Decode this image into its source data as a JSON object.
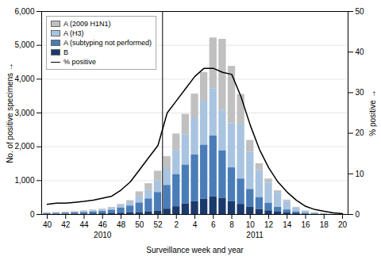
{
  "chart_data": {
    "type": "bar",
    "stacked": true,
    "categories": [
      "40",
      null,
      "42",
      null,
      "44",
      null,
      "46",
      null,
      "48",
      null,
      "50",
      null,
      "52",
      null,
      "2",
      null,
      "4",
      null,
      "6",
      null,
      "8",
      null,
      "10",
      null,
      "12",
      null,
      "14",
      null,
      "16",
      null,
      "18",
      null,
      "20"
    ],
    "series": [
      {
        "name": "A (2009 H1N1)",
        "color": "#c0c0c0",
        "values": [
          15,
          15,
          20,
          20,
          25,
          30,
          30,
          35,
          40,
          60,
          150,
          200,
          280,
          350,
          500,
          600,
          700,
          850,
          1500,
          2100,
          1700,
          900,
          350,
          200,
          120,
          70,
          40,
          20,
          10,
          5,
          3,
          1,
          1
        ]
      },
      {
        "name": "A (H3)",
        "color": "#a8c4e0",
        "values": [
          10,
          10,
          15,
          20,
          25,
          30,
          40,
          50,
          70,
          100,
          180,
          250,
          350,
          500,
          700,
          900,
          1100,
          1300,
          1400,
          1200,
          1300,
          1600,
          1100,
          800,
          600,
          420,
          250,
          120,
          60,
          30,
          12,
          5,
          2
        ]
      },
      {
        "name": "A (subtyping not performed)",
        "color": "#4a7db8",
        "values": [
          20,
          25,
          30,
          35,
          45,
          55,
          70,
          100,
          150,
          200,
          280,
          380,
          550,
          700,
          950,
          1150,
          1380,
          1600,
          1800,
          1400,
          1000,
          750,
          520,
          350,
          220,
          140,
          90,
          50,
          25,
          12,
          6,
          3,
          1
        ]
      },
      {
        "name": "B",
        "color": "#1a3a6b",
        "values": [
          8,
          8,
          10,
          12,
          15,
          18,
          20,
          25,
          40,
          50,
          60,
          80,
          100,
          160,
          230,
          310,
          380,
          450,
          520,
          480,
          380,
          300,
          220,
          150,
          110,
          70,
          45,
          25,
          12,
          6,
          3,
          1,
          1
        ]
      },
      {
        "name": "% positive",
        "type": "line",
        "axis": "y2",
        "color": "#000000",
        "values": [
          2.5,
          2.8,
          2.8,
          3.0,
          3.2,
          3.5,
          4.0,
          4.5,
          6.0,
          8.0,
          11.0,
          14.0,
          17.0,
          25.0,
          28.0,
          31.0,
          34.0,
          36.0,
          36.0,
          35.0,
          34.5,
          29.0,
          22.0,
          16.0,
          11.5,
          8.0,
          5.5,
          3.5,
          2.0,
          1.2,
          0.8,
          0.4,
          0.2
        ]
      }
    ],
    "xlabel": "Surveillance week and year",
    "ylabel": "No. of positive specimens",
    "y2label": "% positive",
    "ylim": [
      0,
      6000
    ],
    "yticks": [
      0,
      {
        "value": 1000,
        "label": "1,000"
      },
      {
        "value": 2000,
        "label": "2,000"
      },
      {
        "value": 3000,
        "label": "3,000"
      },
      {
        "value": 4000,
        "label": "4,000"
      },
      {
        "value": 5000,
        "label": "5,000"
      },
      {
        "value": 6000,
        "label": "6,000"
      }
    ],
    "y2lim": [
      0,
      50
    ],
    "y2ticks": [
      0,
      10,
      20,
      30,
      40,
      50
    ],
    "grid": true,
    "legend": "upper left",
    "annotations": [
      {
        "text": "2010",
        "start": 0,
        "end": 12
      },
      {
        "text": "2011",
        "start": 13,
        "end": 32
      }
    ]
  }
}
